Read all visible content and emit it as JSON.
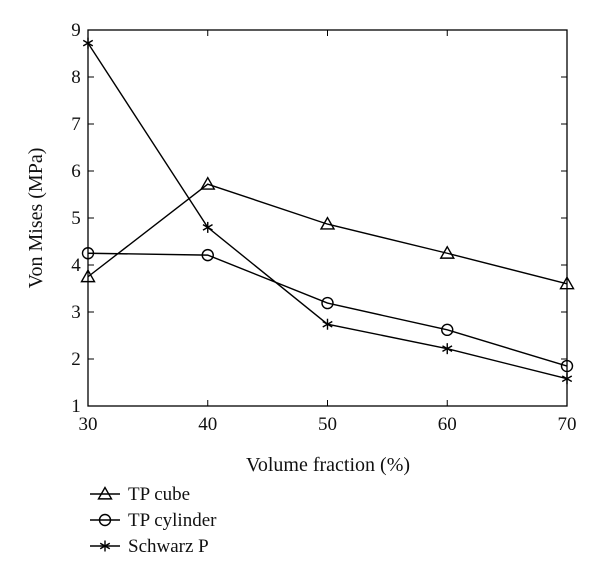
{
  "chart_data": {
    "type": "line",
    "title": "",
    "xlabel": "Volume fraction (%)",
    "ylabel": "Von Mises (MPa)",
    "xlim": [
      30,
      70
    ],
    "ylim": [
      1,
      9
    ],
    "x": [
      30,
      40,
      50,
      60,
      70
    ],
    "xticks": [
      30,
      40,
      50,
      60,
      70
    ],
    "yticks": [
      1,
      2,
      3,
      4,
      5,
      6,
      7,
      8,
      9
    ],
    "grid": false,
    "legend_position": "below plot, left",
    "series": [
      {
        "name": "TP cube",
        "marker": "triangle",
        "values": [
          3.75,
          5.72,
          4.87,
          4.25,
          3.6
        ]
      },
      {
        "name": "TP cylinder",
        "marker": "circle",
        "values": [
          4.25,
          4.21,
          3.19,
          2.62,
          1.85
        ]
      },
      {
        "name": "Schwarz P",
        "marker": "asterisk",
        "values": [
          8.72,
          4.8,
          2.74,
          2.22,
          1.58
        ]
      }
    ]
  },
  "colors": {
    "line": "#000000",
    "background": "#ffffff"
  }
}
